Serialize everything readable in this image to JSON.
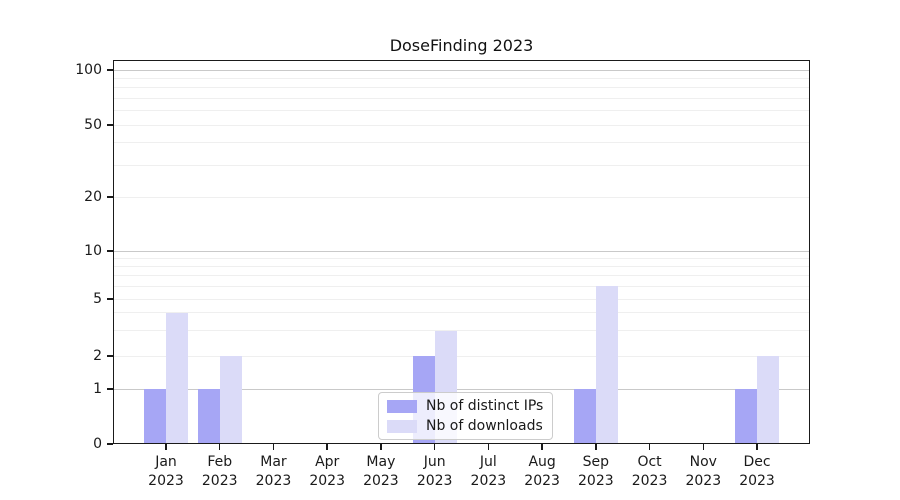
{
  "chart_data": {
    "type": "bar",
    "title": "DoseFinding 2023",
    "categories": [
      "Jan",
      "Feb",
      "Mar",
      "Apr",
      "May",
      "Jun",
      "Jul",
      "Aug",
      "Sep",
      "Oct",
      "Nov",
      "Dec"
    ],
    "category_year": "2023",
    "series": [
      {
        "name": "Nb of distinct IPs",
        "color": "#a6a6f5",
        "values": [
          1,
          1,
          0,
          0,
          0,
          2,
          0,
          0,
          1,
          0,
          0,
          1
        ]
      },
      {
        "name": "Nb of downloads",
        "color": "#dbdbf8",
        "values": [
          4,
          2,
          0,
          0,
          0,
          3,
          0,
          0,
          6,
          0,
          0,
          2
        ]
      }
    ],
    "xlabel": "",
    "ylabel": "",
    "y_axis": {
      "scale": "symlog",
      "tick_labels": [
        "0",
        "1",
        "2",
        "5",
        "10",
        "20",
        "50",
        "100"
      ],
      "tick_values": [
        0,
        1,
        2,
        5,
        10,
        20,
        50,
        100
      ],
      "major_gridlines": [
        1,
        10,
        100
      ],
      "minor_gridlines": [
        2,
        3,
        4,
        5,
        6,
        7,
        8,
        9,
        20,
        30,
        40,
        50,
        60,
        70,
        80,
        90
      ],
      "ylim": [
        0,
        115
      ]
    },
    "grid": "horizontal",
    "legend_position": "lower center"
  },
  "colors": {
    "major_grid": "#c9c9c9",
    "minor_grid": "#efefef",
    "axis": "#1a1a1a",
    "background": "#ffffff"
  }
}
